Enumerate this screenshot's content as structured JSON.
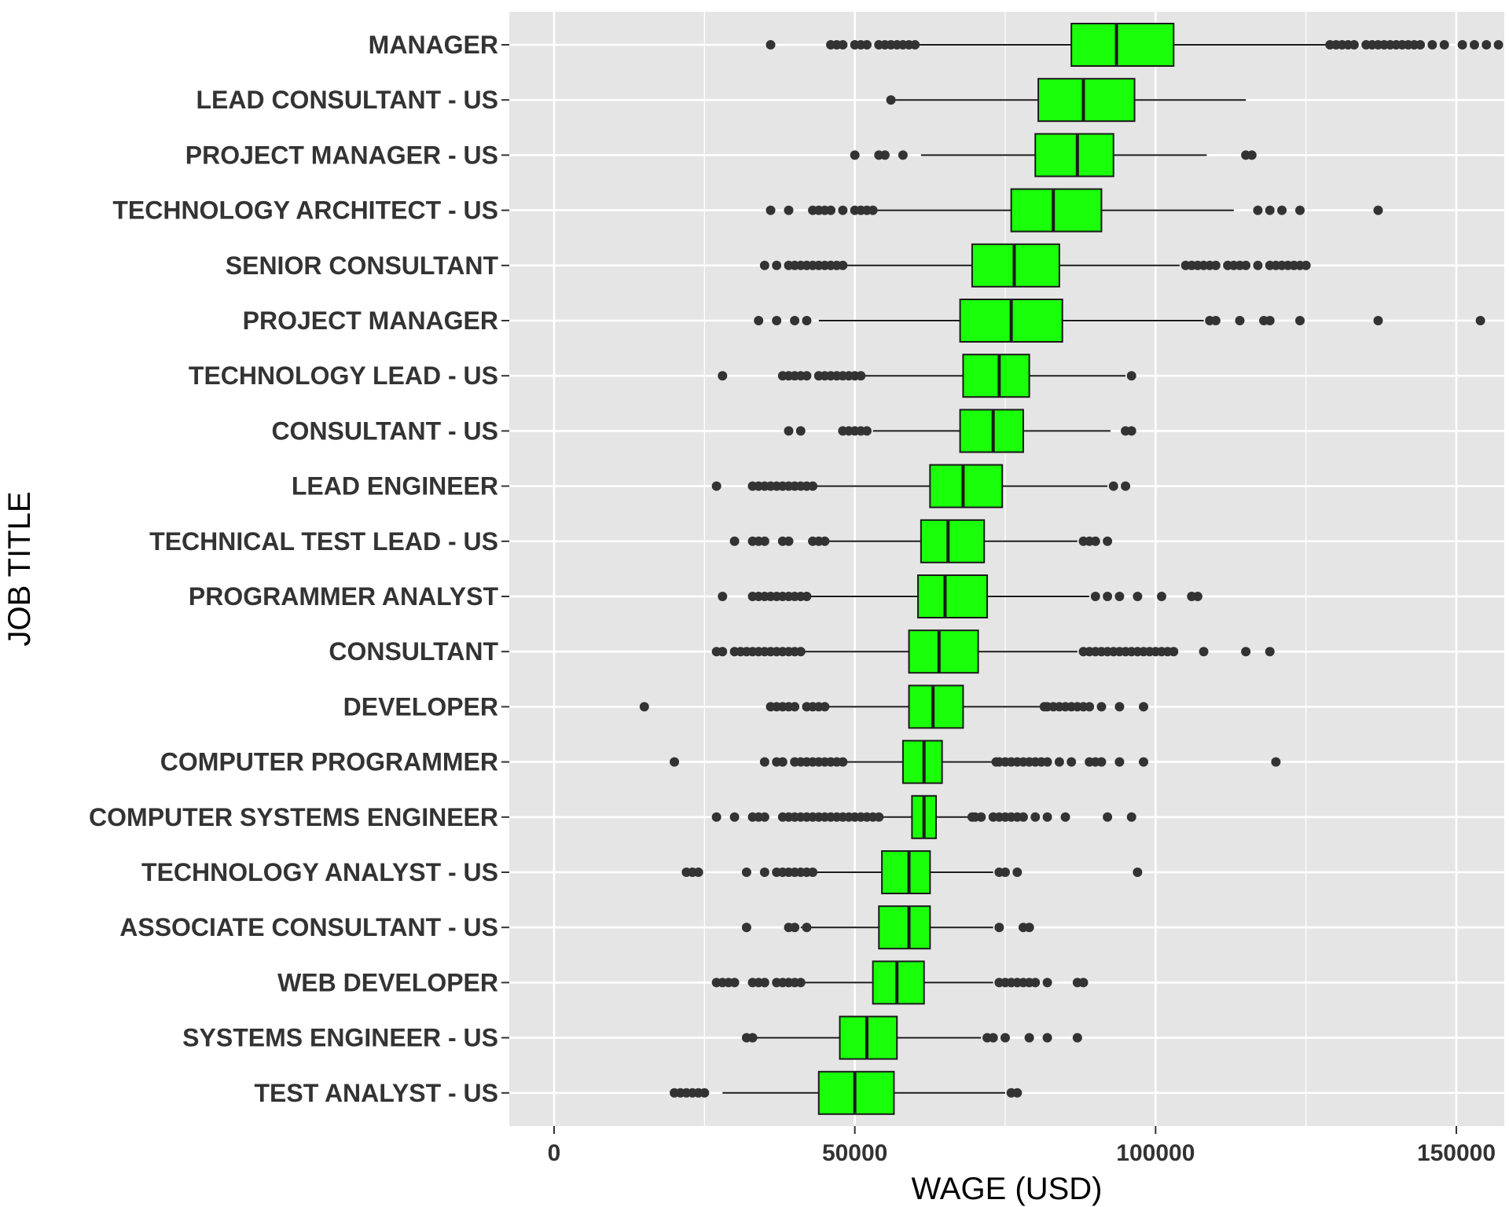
{
  "chart_data": {
    "type": "boxplot",
    "orientation": "horizontal",
    "title": "",
    "xlabel": "WAGE (USD)",
    "ylabel": "JOB TITLE",
    "xlim": [
      -8000,
      158000
    ],
    "x_ticks": [
      0,
      50000,
      100000,
      150000
    ],
    "x_tick_labels": [
      "0",
      "50000",
      "100000",
      "150000"
    ],
    "grid": true,
    "colors": {
      "box_fill": "#1aff0a",
      "box_stroke": "#1a1a1a",
      "panel_bg": "#e5e5e5",
      "grid": "#ffffff",
      "outlier": "#333333"
    },
    "categories": [
      "MANAGER",
      "LEAD CONSULTANT - US",
      "PROJECT MANAGER - US",
      "TECHNOLOGY ARCHITECT - US",
      "SENIOR CONSULTANT",
      "PROJECT MANAGER",
      "TECHNOLOGY LEAD - US",
      "CONSULTANT - US",
      "LEAD ENGINEER",
      "TECHNICAL TEST LEAD - US",
      "PROGRAMMER ANALYST",
      "CONSULTANT",
      "DEVELOPER",
      "COMPUTER PROGRAMMER",
      "COMPUTER SYSTEMS ENGINEER",
      "TECHNOLOGY ANALYST - US",
      "ASSOCIATE CONSULTANT - US",
      "WEB DEVELOPER",
      "SYSTEMS ENGINEER - US",
      "TEST ANALYST - US"
    ],
    "boxes": [
      {
        "whisker_low": 60000,
        "q1": 86000,
        "median": 93500,
        "q3": 103000,
        "whisker_high": 128500,
        "outliers": [
          36000,
          46000,
          47000,
          48000,
          50000,
          51000,
          52000,
          54000,
          55000,
          56000,
          57000,
          58000,
          59000,
          60000,
          129000,
          130000,
          131000,
          132000,
          133000,
          135000,
          136000,
          137000,
          138000,
          139000,
          140000,
          141000,
          142000,
          143000,
          144000,
          146000,
          148000,
          151000,
          153000,
          155000,
          157000
        ]
      },
      {
        "whisker_low": 56000,
        "q1": 80500,
        "median": 88000,
        "q3": 96500,
        "whisker_high": 115000,
        "outliers": [
          56000
        ]
      },
      {
        "whisker_low": 61000,
        "q1": 80000,
        "median": 87000,
        "q3": 93000,
        "whisker_high": 108500,
        "outliers": [
          50000,
          54000,
          55000,
          58000,
          115000,
          116000
        ]
      },
      {
        "whisker_low": 53000,
        "q1": 76000,
        "median": 83000,
        "q3": 91000,
        "whisker_high": 113000,
        "outliers": [
          36000,
          39000,
          43000,
          44000,
          45000,
          46000,
          48000,
          50000,
          51000,
          52000,
          53000,
          117000,
          119000,
          121000,
          124000,
          137000
        ]
      },
      {
        "whisker_low": 48000,
        "q1": 69500,
        "median": 76500,
        "q3": 84000,
        "whisker_high": 104000,
        "outliers": [
          35000,
          37000,
          39000,
          40000,
          41000,
          42000,
          43000,
          44000,
          45000,
          46000,
          47000,
          48000,
          105000,
          106000,
          107000,
          108000,
          109000,
          110000,
          112000,
          113000,
          114000,
          115000,
          117000,
          119000,
          120000,
          121000,
          122000,
          123000,
          124000,
          125000
        ]
      },
      {
        "whisker_low": 44000,
        "q1": 67500,
        "median": 76000,
        "q3": 84500,
        "whisker_high": 108000,
        "outliers": [
          34000,
          37000,
          40000,
          42000,
          109000,
          110000,
          114000,
          118000,
          119000,
          124000,
          137000,
          154000
        ]
      },
      {
        "whisker_low": 51000,
        "q1": 68000,
        "median": 74000,
        "q3": 79000,
        "whisker_high": 95000,
        "outliers": [
          28000,
          38000,
          39000,
          40000,
          41000,
          42000,
          44000,
          45000,
          46000,
          47000,
          48000,
          49000,
          50000,
          51000,
          96000
        ]
      },
      {
        "whisker_low": 53000,
        "q1": 67500,
        "median": 73000,
        "q3": 78000,
        "whisker_high": 92500,
        "outliers": [
          39000,
          41000,
          48000,
          49000,
          50000,
          51000,
          52000,
          95000,
          96000
        ]
      },
      {
        "whisker_low": 43000,
        "q1": 62500,
        "median": 68000,
        "q3": 74500,
        "whisker_high": 92000,
        "outliers": [
          27000,
          33000,
          34000,
          35000,
          36000,
          37000,
          38000,
          39000,
          40000,
          41000,
          42000,
          43000,
          93000,
          95000
        ]
      },
      {
        "whisker_low": 45000,
        "q1": 61000,
        "median": 65500,
        "q3": 71500,
        "whisker_high": 87000,
        "outliers": [
          30000,
          33000,
          34000,
          35000,
          38000,
          39000,
          43000,
          44000,
          45000,
          88000,
          89000,
          90000,
          92000
        ]
      },
      {
        "whisker_low": 42000,
        "q1": 60500,
        "median": 65000,
        "q3": 72000,
        "whisker_high": 89000,
        "outliers": [
          28000,
          33000,
          34000,
          35000,
          36000,
          37000,
          38000,
          39000,
          40000,
          41000,
          42000,
          90000,
          92000,
          94000,
          97000,
          101000,
          106000,
          107000
        ]
      },
      {
        "whisker_low": 41000,
        "q1": 59000,
        "median": 64000,
        "q3": 70500,
        "whisker_high": 87000,
        "outliers": [
          27000,
          28000,
          30000,
          31000,
          32000,
          33000,
          34000,
          35000,
          36000,
          37000,
          38000,
          39000,
          40000,
          41000,
          88000,
          89000,
          90000,
          91000,
          92000,
          93000,
          94000,
          95000,
          96000,
          97000,
          98000,
          99000,
          100000,
          101000,
          102000,
          103000,
          108000,
          115000,
          119000
        ]
      },
      {
        "whisker_low": 45000,
        "q1": 59000,
        "median": 63000,
        "q3": 68000,
        "whisker_high": 81000,
        "outliers": [
          15000,
          36000,
          37000,
          38000,
          39000,
          40000,
          42000,
          43000,
          44000,
          45000,
          81500,
          82000,
          83000,
          84000,
          85000,
          86000,
          87000,
          88000,
          89000,
          91000,
          94000,
          98000
        ]
      },
      {
        "whisker_low": 48000,
        "q1": 58000,
        "median": 61500,
        "q3": 64500,
        "whisker_high": 73000,
        "outliers": [
          20000,
          35000,
          37000,
          38000,
          40000,
          41000,
          42000,
          43000,
          44000,
          45000,
          46000,
          47000,
          48000,
          73500,
          74000,
          75000,
          76000,
          77000,
          78000,
          79000,
          80000,
          81000,
          82000,
          84000,
          86000,
          89000,
          90000,
          91000,
          94000,
          98000,
          120000
        ]
      },
      {
        "whisker_low": 54000,
        "q1": 59500,
        "median": 61500,
        "q3": 63500,
        "whisker_high": 69000,
        "outliers": [
          27000,
          30000,
          33000,
          34000,
          35000,
          38000,
          39000,
          40000,
          41000,
          42000,
          43000,
          44000,
          45000,
          46000,
          47000,
          48000,
          49000,
          50000,
          51000,
          52000,
          53000,
          54000,
          69500,
          70000,
          71000,
          73000,
          74000,
          75000,
          76000,
          77000,
          78000,
          80000,
          82000,
          85000,
          92000,
          96000
        ]
      },
      {
        "whisker_low": 43000,
        "q1": 54500,
        "median": 59000,
        "q3": 62500,
        "whisker_high": 73000,
        "outliers": [
          22000,
          23000,
          24000,
          32000,
          35000,
          37000,
          38000,
          39000,
          40000,
          41000,
          42000,
          43000,
          74000,
          75000,
          77000,
          97000
        ]
      },
      {
        "whisker_low": 41000,
        "q1": 54000,
        "median": 59000,
        "q3": 62500,
        "whisker_high": 73000,
        "outliers": [
          32000,
          39000,
          40000,
          42000,
          74000,
          78000,
          79000
        ]
      },
      {
        "whisker_low": 41000,
        "q1": 53000,
        "median": 57000,
        "q3": 61500,
        "whisker_high": 73000,
        "outliers": [
          27000,
          28000,
          29000,
          30000,
          33000,
          34000,
          35000,
          37000,
          38000,
          39000,
          40000,
          41000,
          74000,
          75000,
          76000,
          77000,
          78000,
          79000,
          80000,
          82000,
          87000,
          88000
        ]
      },
      {
        "whisker_low": 33000,
        "q1": 47500,
        "median": 52000,
        "q3": 57000,
        "whisker_high": 71000,
        "outliers": [
          32000,
          33000,
          72000,
          73000,
          75000,
          79000,
          82000,
          87000
        ]
      },
      {
        "whisker_low": 28000,
        "q1": 44000,
        "median": 50000,
        "q3": 56500,
        "whisker_high": 75000,
        "outliers": [
          20000,
          21000,
          22000,
          23000,
          24000,
          25000,
          76000,
          77000
        ]
      }
    ]
  }
}
